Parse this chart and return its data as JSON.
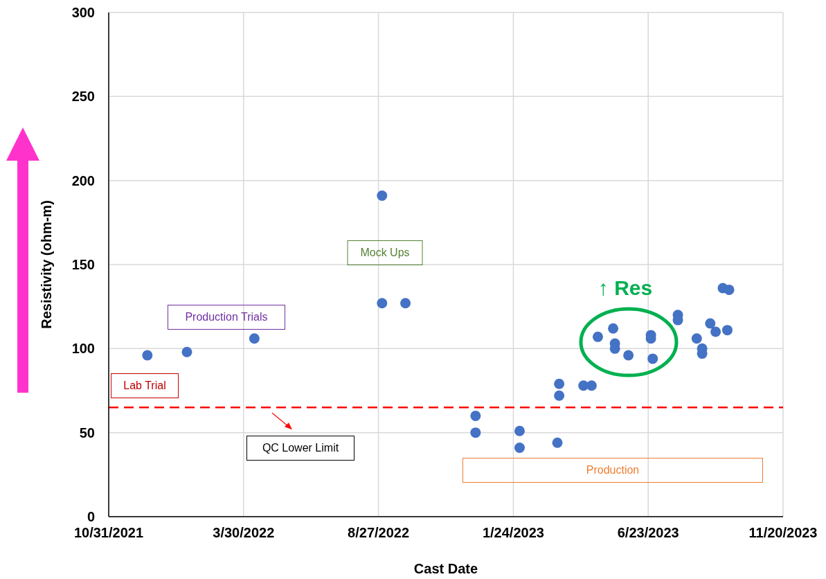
{
  "chart_data": {
    "type": "scatter",
    "xlabel": "Cast Date",
    "ylabel": "Resistivity (ohm-m)",
    "x": [
      "2021-12-13",
      "2022-01-26",
      "2022-04-11",
      "2022-08-31",
      "2022-08-31",
      "2022-09-26",
      "2022-12-13",
      "2022-12-13",
      "2023-01-31",
      "2023-01-31",
      "2023-03-14",
      "2023-03-16",
      "2023-03-16",
      "2023-04-12",
      "2023-04-21",
      "2023-04-28",
      "2023-05-15",
      "2023-05-17",
      "2023-05-17",
      "2023-06-01",
      "2023-06-26",
      "2023-06-26",
      "2023-06-28",
      "2023-07-26",
      "2023-07-26",
      "2023-08-16",
      "2023-08-22",
      "2023-08-22",
      "2023-08-31",
      "2023-09-06",
      "2023-09-14",
      "2023-09-19",
      "2023-09-21"
    ],
    "values": [
      96,
      98,
      106,
      191,
      127,
      127,
      60,
      50,
      51,
      41,
      44,
      79,
      72,
      78,
      78,
      107,
      112,
      103,
      100,
      96,
      108,
      106,
      94,
      120,
      117,
      106,
      100,
      97,
      115,
      110,
      136,
      111,
      135
    ],
    "color": "#4472c4",
    "marker": "circle",
    "xlim": [
      "2021-10-31",
      "2023-11-20"
    ],
    "xticks": [
      {
        "value": "2021-10-31",
        "label": "10/31/2021"
      },
      {
        "value": "2022-03-30",
        "label": "3/30/2022"
      },
      {
        "value": "2022-08-27",
        "label": "8/27/2022"
      },
      {
        "value": "2023-01-24",
        "label": "1/24/2023"
      },
      {
        "value": "2023-06-23",
        "label": "6/23/2023"
      },
      {
        "value": "2023-11-20",
        "label": "11/20/2023"
      }
    ],
    "ylim": [
      0,
      300
    ],
    "yticks": [
      0,
      50,
      100,
      150,
      200,
      250,
      300
    ],
    "grid": true,
    "ref_lines": [
      {
        "axis": "y",
        "value": 65,
        "label": "QC Lower Limit",
        "color": "#ff0000",
        "line_style": "dashed"
      }
    ],
    "annotations": [
      "Lab Trial",
      "Production Trials",
      "Mock Ups",
      "Production",
      "↑ Res"
    ]
  }
}
